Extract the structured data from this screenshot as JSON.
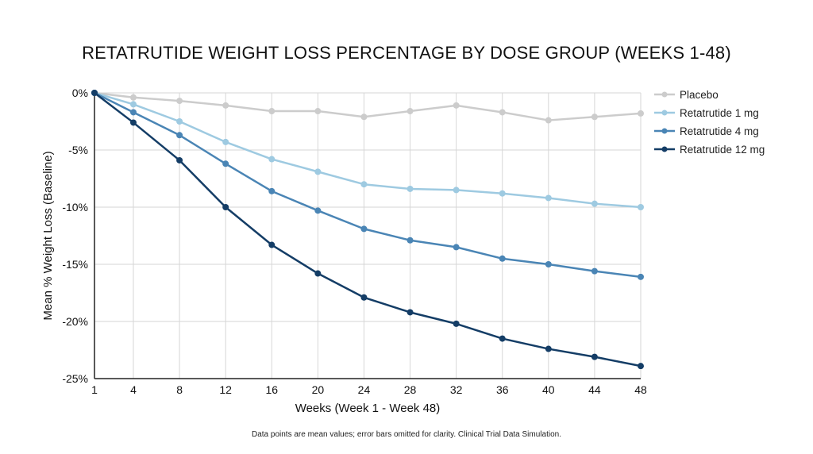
{
  "chart_data": {
    "type": "line",
    "title": "RETATRUTIDE WEIGHT LOSS PERCENTAGE BY DOSE GROUP (WEEKS 1-48)",
    "xlabel": "Weeks (Week 1 - Week 48)",
    "ylabel": "Mean % Weight Loss (Baseline)",
    "x": [
      1,
      4,
      8,
      12,
      16,
      20,
      24,
      28,
      32,
      36,
      40,
      44,
      48
    ],
    "x_tick_labels": [
      "1",
      "4",
      "8",
      "12",
      "16",
      "20",
      "24",
      "28",
      "32",
      "36",
      "40",
      "44",
      "48"
    ],
    "ylim": [
      -25,
      0
    ],
    "y_ticks": [
      0,
      -5,
      -10,
      -15,
      -20,
      -25
    ],
    "y_tick_labels": [
      "0%",
      "-5%",
      "-10%",
      "-15%",
      "-20%",
      "-25%"
    ],
    "grid": true,
    "legend_position": "right",
    "series": [
      {
        "name": "Placebo",
        "color": "#cccccc",
        "values": [
          0,
          -0.4,
          -0.7,
          -1.1,
          -1.6,
          -1.6,
          -2.1,
          -1.6,
          -1.1,
          -1.7,
          -2.4,
          -2.1,
          -1.8
        ]
      },
      {
        "name": "Retatrutide 1 mg",
        "color": "#9ecae1",
        "values": [
          0,
          -1.0,
          -2.5,
          -4.3,
          -5.8,
          -6.9,
          -8.0,
          -8.4,
          -8.5,
          -8.8,
          -9.2,
          -9.7,
          -10.0
        ]
      },
      {
        "name": "Retatrutide 4 mg",
        "color": "#4a85b5",
        "values": [
          0,
          -1.7,
          -3.7,
          -6.2,
          -8.6,
          -10.3,
          -11.9,
          -12.9,
          -13.5,
          -14.5,
          -15.0,
          -15.6,
          -16.1
        ]
      },
      {
        "name": "Retatrutide 12 mg",
        "color": "#143d66",
        "values": [
          0,
          -2.6,
          -5.9,
          -10.0,
          -13.3,
          -15.8,
          -17.9,
          -19.2,
          -20.2,
          -21.5,
          -22.4,
          -23.1,
          -23.9
        ]
      }
    ],
    "footnote": "Data points are mean values; error bars omitted for clarity. Clinical Trial Data Simulation."
  }
}
